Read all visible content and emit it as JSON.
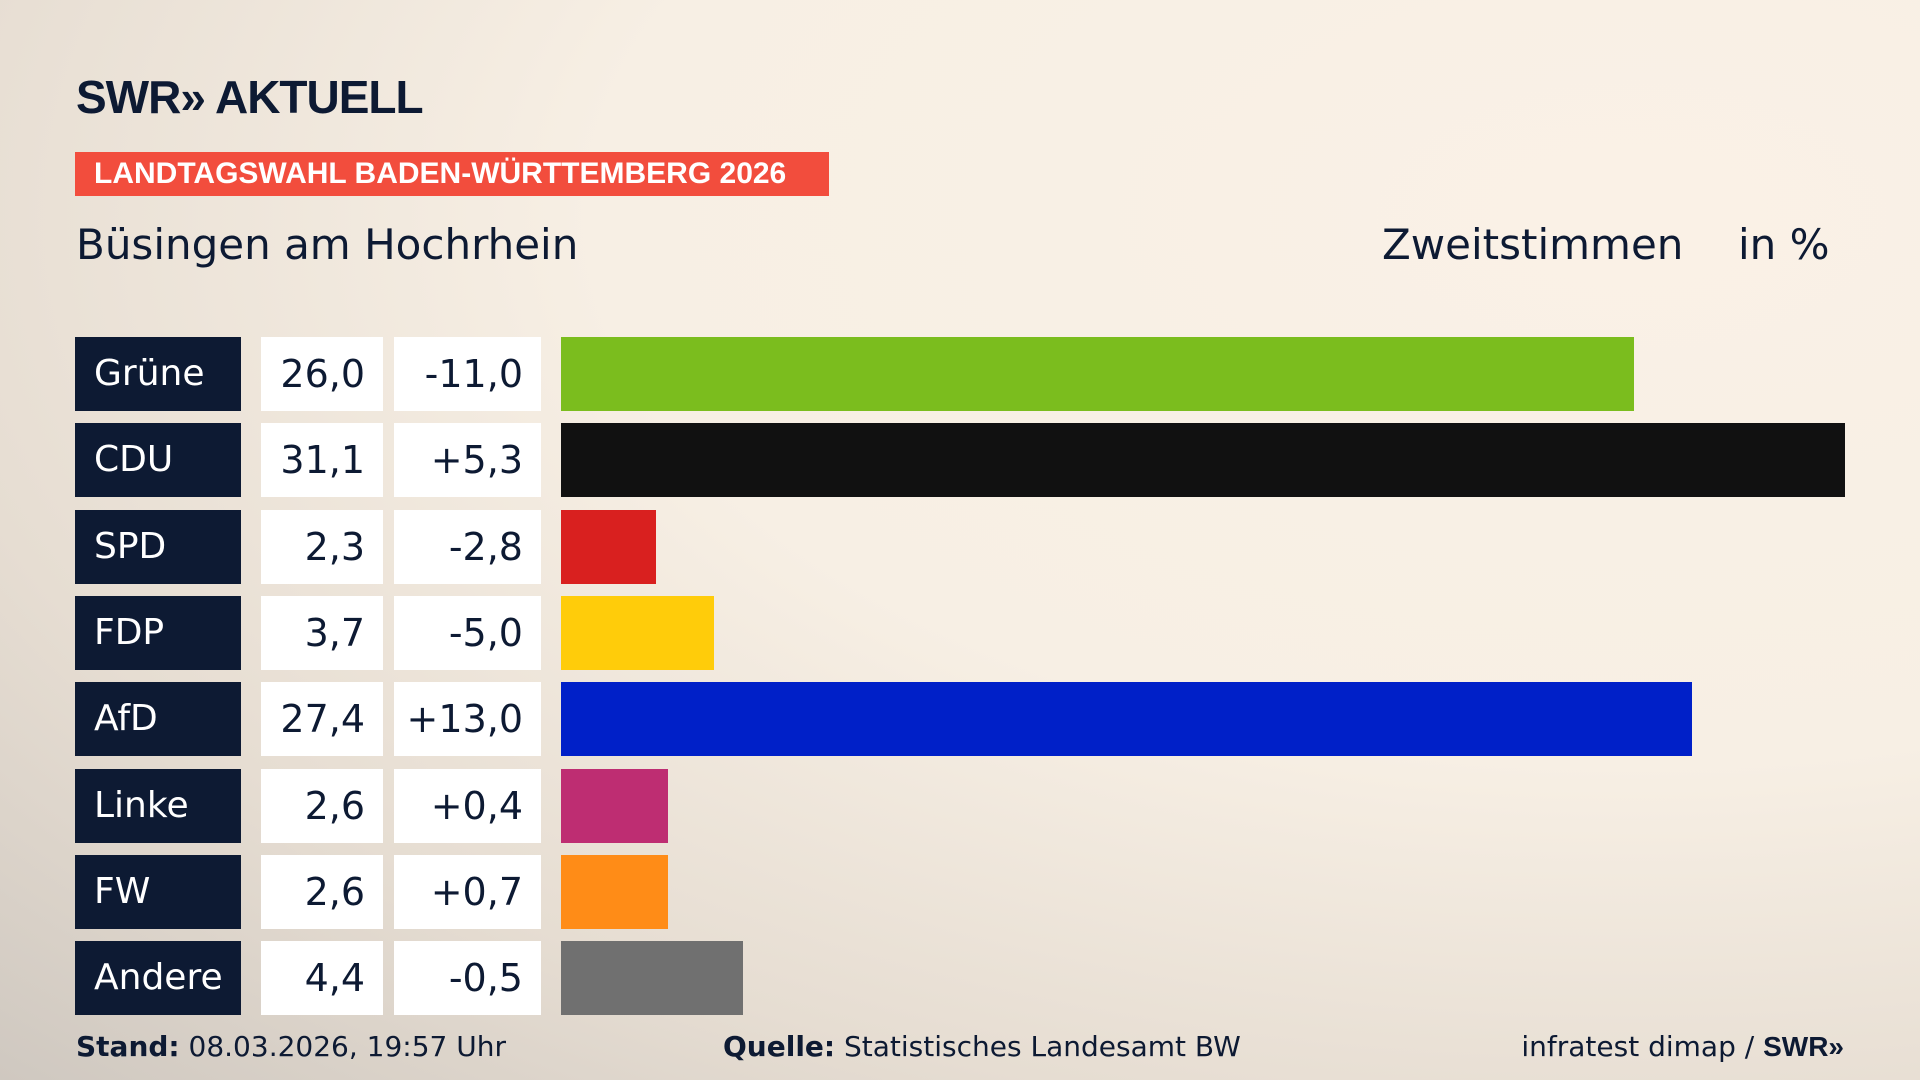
{
  "header": {
    "logo": "SWR» AKTUELL",
    "banner": "LANDTAGSWAHL BADEN-WÜRTTEMBERG 2026",
    "place": "Büsingen am Hochrhein",
    "metric": "Zweitstimmen",
    "unit": "in %"
  },
  "chart_data": {
    "type": "bar",
    "orientation": "horizontal",
    "categories": [
      "Grüne",
      "CDU",
      "SPD",
      "FDP",
      "AfD",
      "Linke",
      "FW",
      "Andere"
    ],
    "values": [
      26.0,
      31.1,
      2.3,
      3.7,
      27.4,
      2.6,
      2.6,
      4.4
    ],
    "value_labels": [
      "26,0",
      "31,1",
      "2,3",
      "3,7",
      "27,4",
      "2,6",
      "2,6",
      "4,4"
    ],
    "change_labels": [
      "-11,0",
      "+5,3",
      "-2,8",
      "-5,0",
      "+13,0",
      "+0,4",
      "+0,7",
      "-0,5"
    ],
    "colors": [
      "#7bbd1e",
      "#111111",
      "#d9201f",
      "#ffcc0a",
      "#0020c8",
      "#be2d72",
      "#ff8c17",
      "#707070"
    ],
    "xlim": [
      0,
      31.1
    ]
  },
  "footer": {
    "stand_label": "Stand:",
    "stand_value": "08.03.2026, 19:57 Uhr",
    "source_label": "Quelle:",
    "source_value": "Statistisches Landesamt BW",
    "credit": "infratest dimap / ",
    "credit_logo": "SWR»"
  }
}
